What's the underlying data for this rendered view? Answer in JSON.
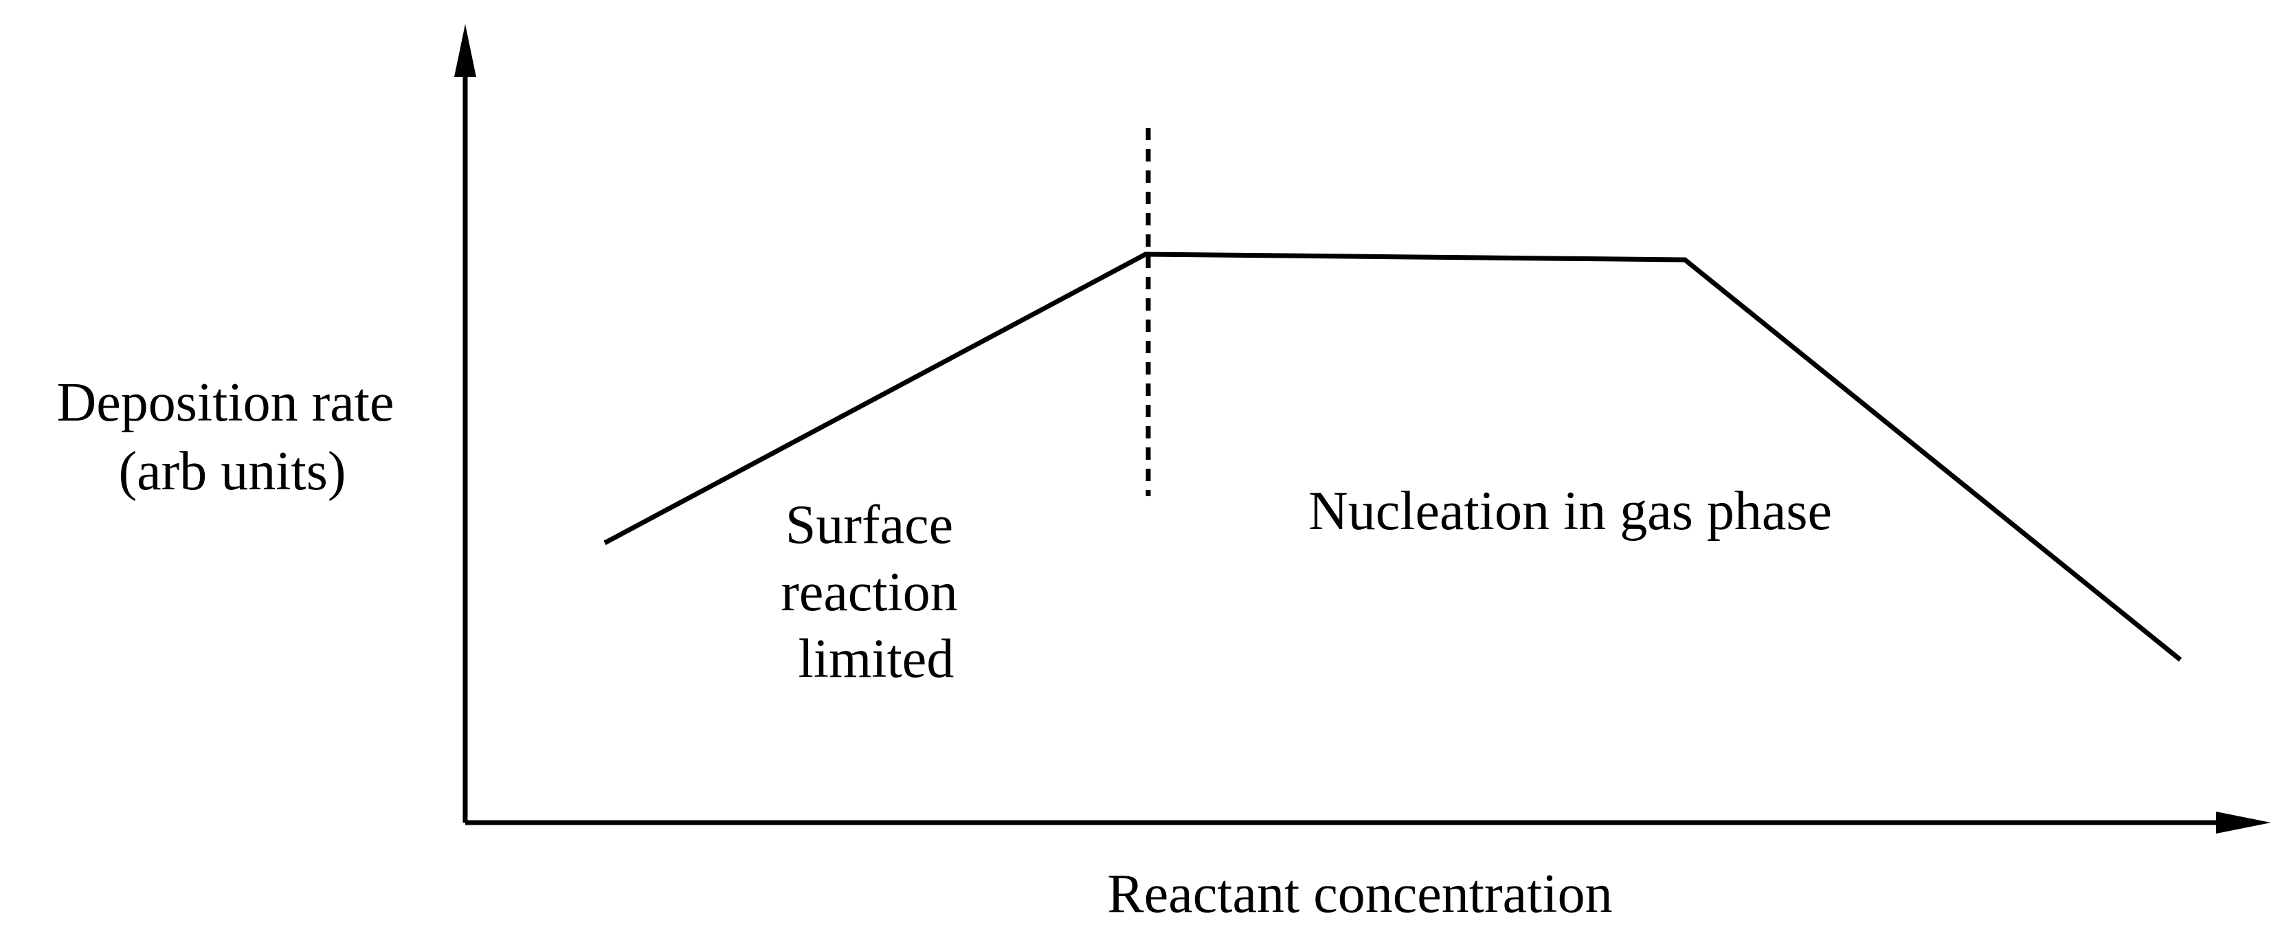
{
  "diagram": {
    "y_axis_label": [
      "Deposition rate",
      "(arb units)"
    ],
    "x_axis_label": "Reactant concentration",
    "region_left_label": [
      "Surface",
      "reaction",
      "limited"
    ],
    "region_right_label": "Nucleation in gas phase"
  },
  "colors": {
    "ink": "#000000",
    "background": "#ffffff"
  }
}
